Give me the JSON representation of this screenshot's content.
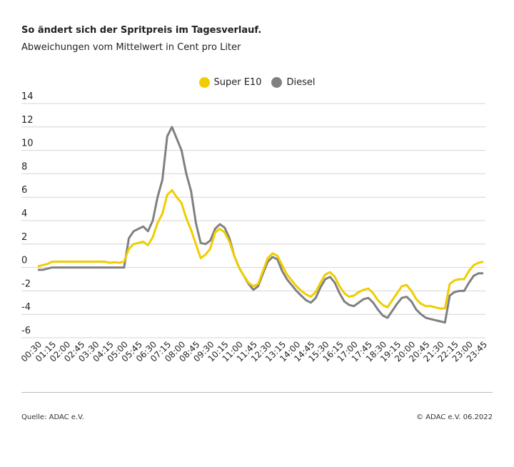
{
  "title": "So ändert sich der Spritpreis im Tagesverlauf.",
  "subtitle": "Abweichungen vom Mittelwert in Cent pro Liter",
  "source": "Quelle: ADAC e.V.",
  "copyright": "© ADAC e.V. 06.2022",
  "chart_data": {
    "type": "line",
    "ylim": [
      -6,
      14
    ],
    "yticks": [
      14,
      12,
      10,
      8,
      6,
      4,
      2,
      0,
      -2,
      -4,
      -6
    ],
    "grid": true,
    "legend_position": "top-center",
    "xtick_labels": [
      "00:30",
      "01:15",
      "02:00",
      "02:45",
      "03:30",
      "04:15",
      "05:00",
      "05:45",
      "06:30",
      "07:15",
      "08:00",
      "08:45",
      "09:30",
      "10:15",
      "11:00",
      "11:45",
      "12:30",
      "13:15",
      "14:00",
      "14:45",
      "15:30",
      "16:15",
      "17:00",
      "17:45",
      "18:30",
      "19:15",
      "20:00",
      "20:45",
      "21:30",
      "22:15",
      "23:00",
      "23:45"
    ],
    "x": [
      "00:30",
      "00:45",
      "01:00",
      "01:15",
      "01:30",
      "01:45",
      "02:00",
      "02:15",
      "02:30",
      "02:45",
      "03:00",
      "03:15",
      "03:30",
      "03:45",
      "04:00",
      "04:15",
      "04:30",
      "04:45",
      "05:00",
      "05:15",
      "05:30",
      "05:45",
      "06:00",
      "06:15",
      "06:30",
      "06:45",
      "07:00",
      "07:15",
      "07:30",
      "07:45",
      "08:00",
      "08:15",
      "08:30",
      "08:45",
      "09:00",
      "09:15",
      "09:30",
      "09:45",
      "10:00",
      "10:15",
      "10:30",
      "10:45",
      "11:00",
      "11:15",
      "11:30",
      "11:45",
      "12:00",
      "12:15",
      "12:30",
      "12:45",
      "13:00",
      "13:15",
      "13:30",
      "13:45",
      "14:00",
      "14:15",
      "14:30",
      "14:45",
      "15:00",
      "15:15",
      "15:30",
      "15:45",
      "16:00",
      "16:15",
      "16:30",
      "16:45",
      "17:00",
      "17:15",
      "17:30",
      "17:45",
      "18:00",
      "18:15",
      "18:30",
      "18:45",
      "19:00",
      "19:15",
      "19:30",
      "19:45",
      "20:00",
      "20:15",
      "20:30",
      "20:45",
      "21:00",
      "21:15",
      "21:30",
      "21:45",
      "22:00",
      "22:15",
      "22:30",
      "22:45",
      "23:00",
      "23:15",
      "23:30",
      "23:45"
    ],
    "series": [
      {
        "name": "Super E10",
        "color": "#f0cd00",
        "values": [
          0.1,
          0.2,
          0.3,
          0.5,
          0.5,
          0.5,
          0.5,
          0.5,
          0.5,
          0.5,
          0.5,
          0.5,
          0.5,
          0.5,
          0.5,
          0.4,
          0.45,
          0.4,
          0.5,
          1.6,
          2.0,
          2.1,
          2.2,
          1.9,
          2.6,
          3.8,
          4.6,
          6.2,
          6.6,
          6.0,
          5.5,
          4.2,
          3.2,
          2.0,
          0.8,
          1.1,
          1.6,
          3.0,
          3.3,
          3.0,
          2.2,
          1.0,
          0.0,
          -0.7,
          -1.3,
          -1.6,
          -1.4,
          -0.3,
          0.8,
          1.2,
          1.0,
          0.2,
          -0.6,
          -1.1,
          -1.6,
          -2.0,
          -2.3,
          -2.5,
          -2.1,
          -1.3,
          -0.6,
          -0.4,
          -0.8,
          -1.6,
          -2.2,
          -2.5,
          -2.4,
          -2.1,
          -1.9,
          -1.8,
          -2.2,
          -2.8,
          -3.2,
          -3.4,
          -2.8,
          -2.2,
          -1.6,
          -1.5,
          -2.0,
          -2.7,
          -3.1,
          -3.3,
          -3.3,
          -3.4,
          -3.5,
          -3.5,
          -1.4,
          -1.1,
          -1.0,
          -1.0,
          -0.3,
          0.2,
          0.4,
          0.5
        ]
      },
      {
        "name": "Diesel",
        "color": "#808080",
        "values": [
          -0.2,
          -0.2,
          -0.1,
          0.0,
          0.0,
          0.0,
          0.0,
          0.0,
          0.0,
          0.0,
          0.0,
          0.0,
          0.0,
          0.0,
          0.0,
          0.0,
          0.0,
          0.0,
          0.0,
          2.5,
          3.1,
          3.3,
          3.5,
          3.1,
          4.0,
          6.0,
          7.5,
          11.2,
          12.0,
          11.0,
          10.0,
          8.0,
          6.5,
          3.8,
          2.1,
          2.0,
          2.3,
          3.3,
          3.7,
          3.4,
          2.5,
          1.0,
          0.0,
          -0.7,
          -1.4,
          -1.9,
          -1.6,
          -0.5,
          0.5,
          0.9,
          0.7,
          -0.3,
          -1.0,
          -1.5,
          -2.0,
          -2.4,
          -2.8,
          -3.0,
          -2.6,
          -1.7,
          -1.0,
          -0.8,
          -1.3,
          -2.2,
          -2.9,
          -3.2,
          -3.3,
          -3.0,
          -2.7,
          -2.6,
          -3.0,
          -3.6,
          -4.1,
          -4.3,
          -3.7,
          -3.1,
          -2.6,
          -2.5,
          -2.9,
          -3.6,
          -4.0,
          -4.3,
          -4.4,
          -4.5,
          -4.6,
          -4.7,
          -2.4,
          -2.1,
          -2.0,
          -2.0,
          -1.3,
          -0.7,
          -0.5,
          -0.5
        ]
      }
    ]
  }
}
